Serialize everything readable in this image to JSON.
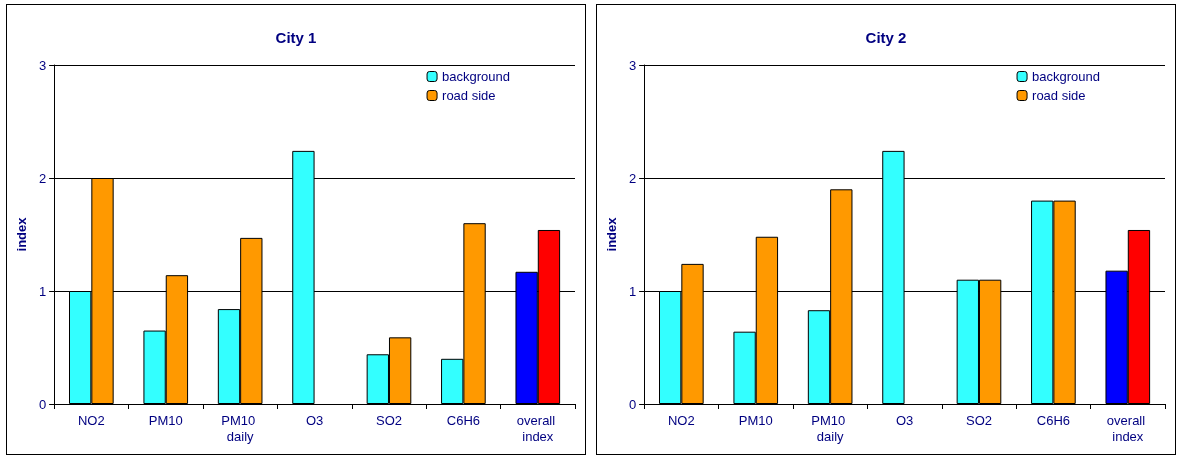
{
  "chart_data": [
    {
      "type": "bar",
      "title": "City 1",
      "ylabel": "index",
      "categories": [
        "NO2",
        "PM10",
        "PM10 daily",
        "O3",
        "SO2",
        "C6H6",
        "overall index"
      ],
      "ylim": [
        0,
        3
      ],
      "yticks": [
        0,
        1,
        2,
        3
      ],
      "grid": "y",
      "legend": "top right",
      "series": [
        {
          "name": "background",
          "color": "#33ffff",
          "colors": [
            "#33ffff",
            "#33ffff",
            "#33ffff",
            "#33ffff",
            "#33ffff",
            "#33ffff",
            "#0000ff"
          ],
          "values": [
            1.0,
            0.65,
            0.84,
            2.24,
            0.44,
            0.4,
            1.17
          ]
        },
        {
          "name": "road side",
          "color": "#ff9900",
          "colors": [
            "#ff9900",
            "#ff9900",
            "#ff9900",
            "#ff9900",
            "#ff9900",
            "#ff9900",
            "#ff0000"
          ],
          "values": [
            2.0,
            1.14,
            1.47,
            null,
            0.59,
            1.6,
            1.54
          ]
        }
      ]
    },
    {
      "type": "bar",
      "title": "City 2",
      "ylabel": "index",
      "categories": [
        "NO2",
        "PM10",
        "PM10 daily",
        "O3",
        "SO2",
        "C6H6",
        "overall index"
      ],
      "ylim": [
        0,
        3
      ],
      "yticks": [
        0,
        1,
        2,
        3
      ],
      "grid": "y",
      "legend": "top right",
      "series": [
        {
          "name": "background",
          "color": "#33ffff",
          "colors": [
            "#33ffff",
            "#33ffff",
            "#33ffff",
            "#33ffff",
            "#33ffff",
            "#33ffff",
            "#0000ff"
          ],
          "values": [
            1.0,
            0.64,
            0.83,
            2.24,
            1.1,
            1.8,
            1.18
          ]
        },
        {
          "name": "road side",
          "color": "#ff9900",
          "colors": [
            "#ff9900",
            "#ff9900",
            "#ff9900",
            "#ff9900",
            "#ff9900",
            "#ff9900",
            "#ff0000"
          ],
          "values": [
            1.24,
            1.48,
            1.9,
            null,
            1.1,
            1.8,
            1.54
          ]
        }
      ]
    }
  ]
}
